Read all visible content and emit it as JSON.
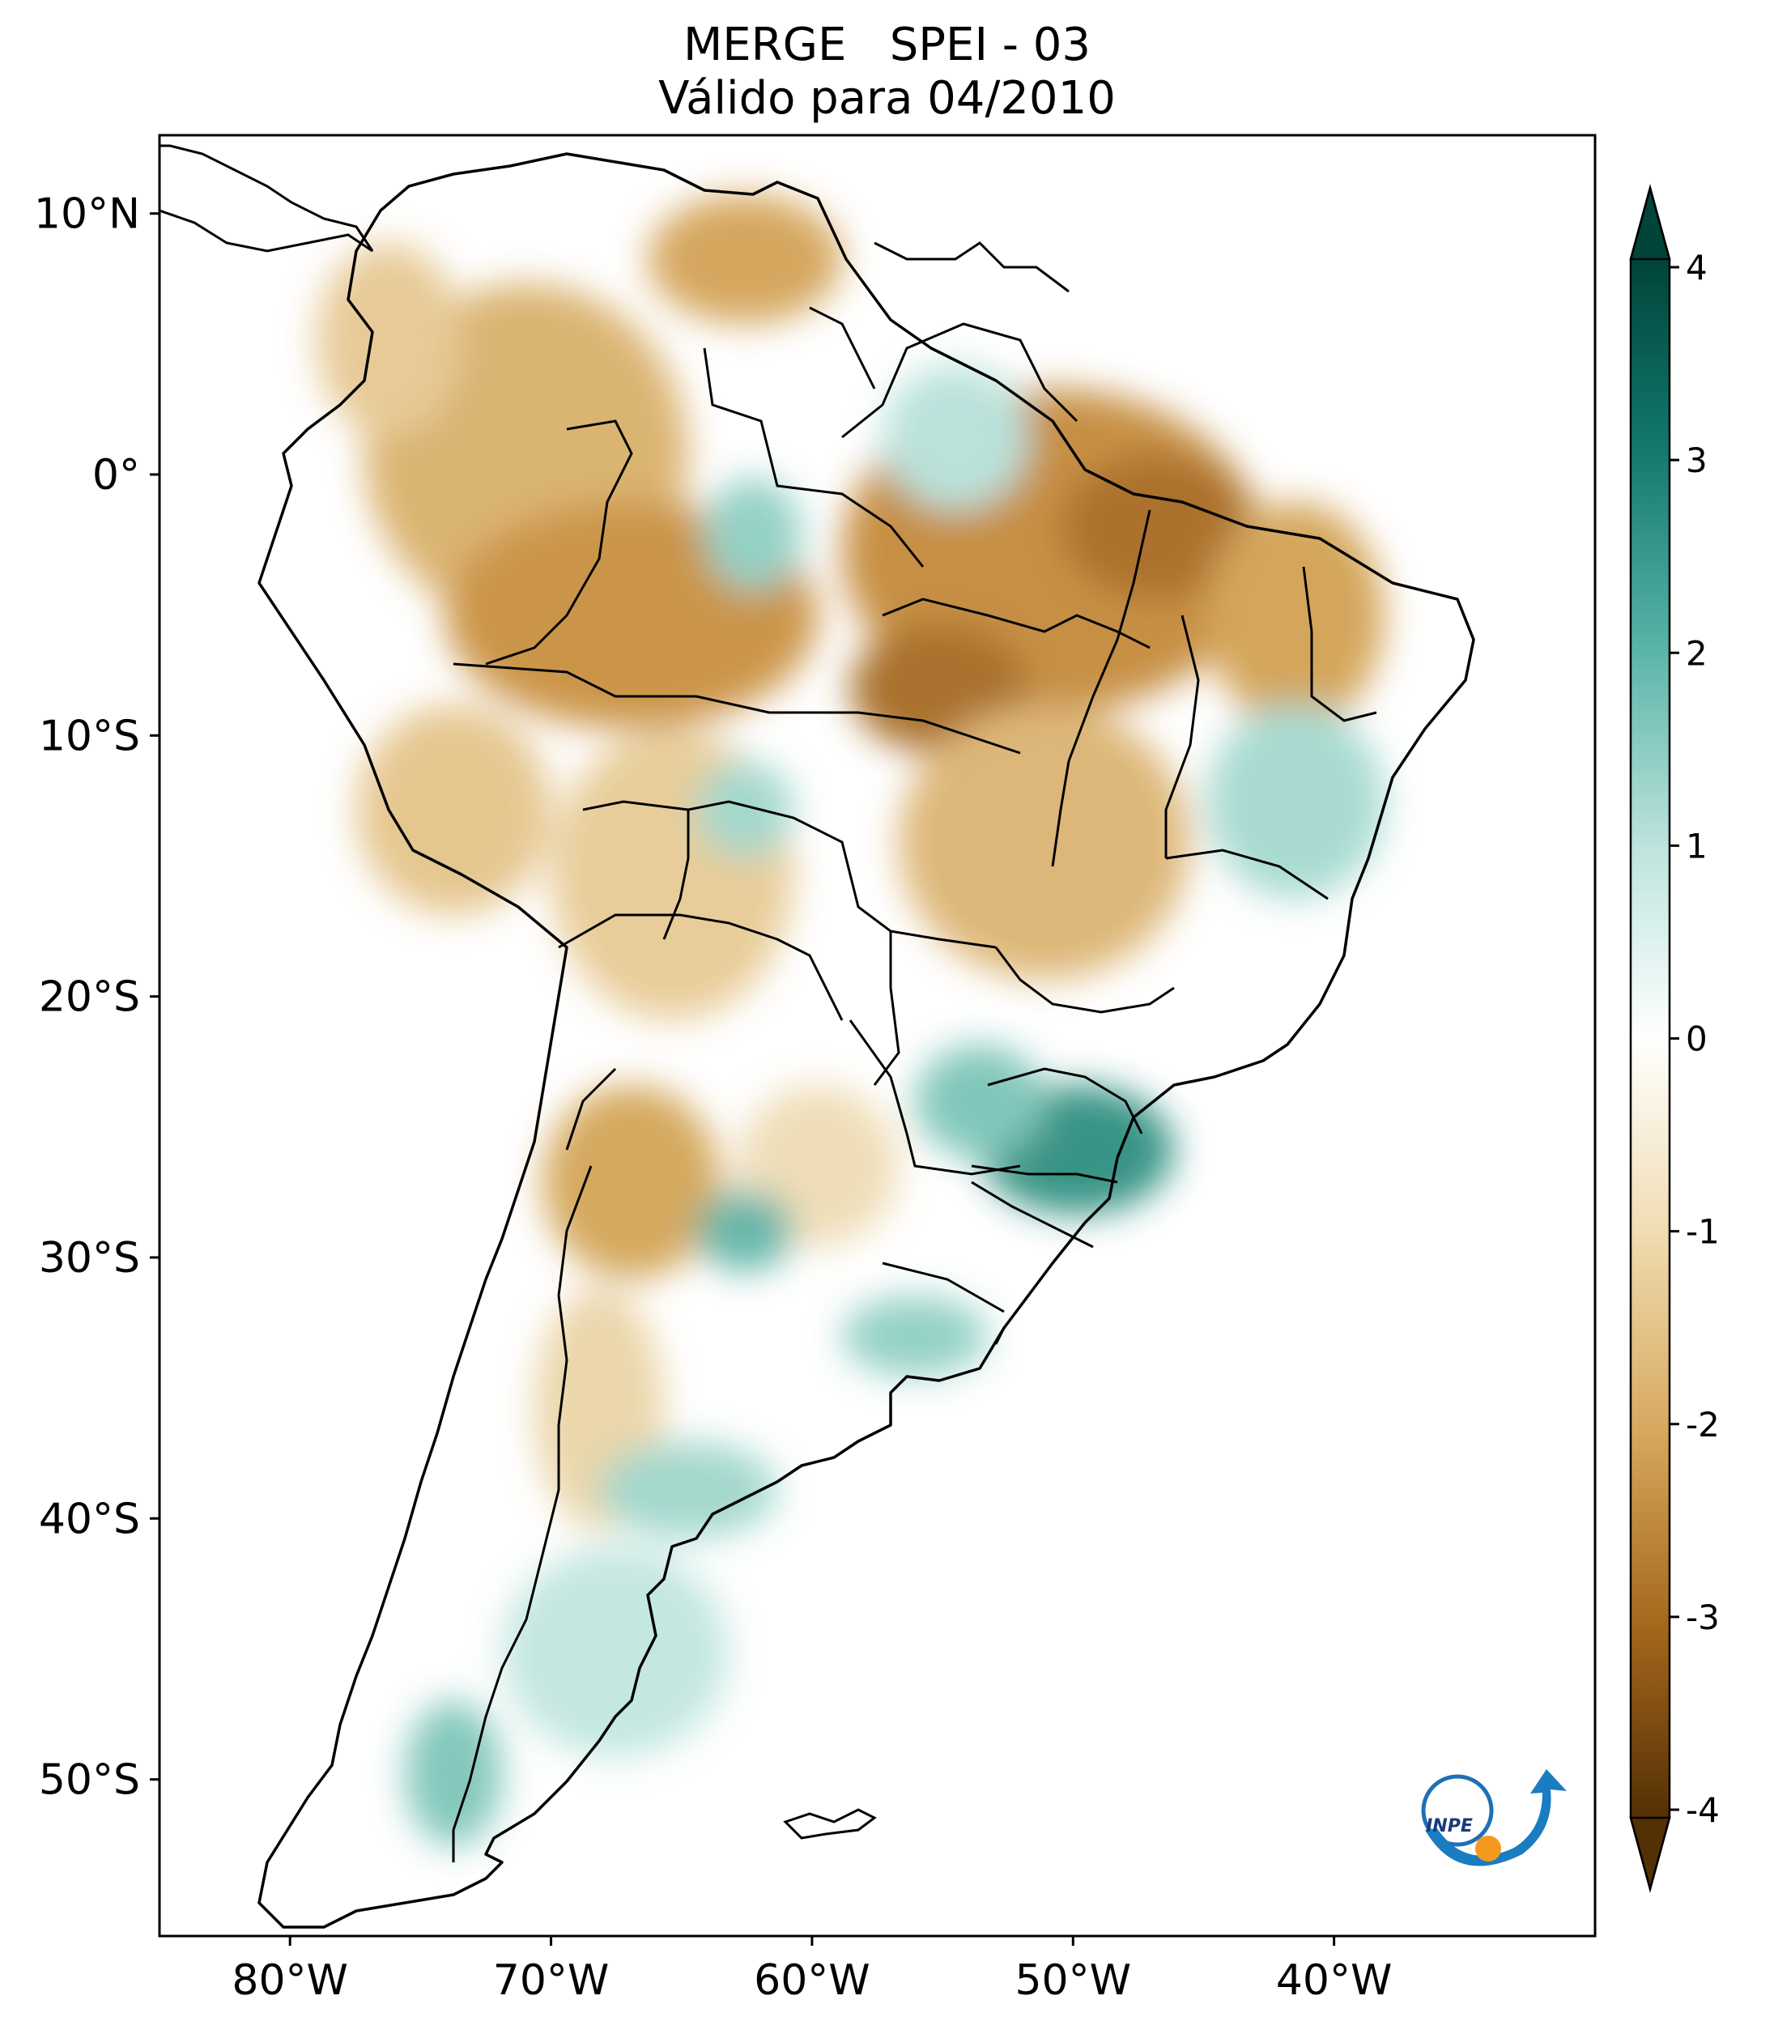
{
  "title": "MERGE   SPEI - 03",
  "subtitle": "Válido para 04/2010",
  "map": {
    "lon_range": [
      -85,
      -30
    ],
    "lat_range": [
      -56,
      13
    ],
    "lat_ticks": [
      "10°N",
      "0°",
      "10°S",
      "20°S",
      "30°S",
      "40°S",
      "50°S"
    ],
    "lon_ticks": [
      "80°W",
      "70°W",
      "60°W",
      "50°W",
      "40°W"
    ],
    "logo_text": "INPE"
  },
  "colorbar": {
    "ticks": [
      "4",
      "3",
      "2",
      "1",
      "0",
      "-1",
      "-2",
      "-3",
      "-4"
    ],
    "colors": {
      "wet": "#00443a",
      "mid_wet": "#5ab4a8",
      "neutral": "#ffffff",
      "mid_dry": "#d9b06a",
      "dry": "#543005"
    },
    "colormap": "BrBG"
  }
}
